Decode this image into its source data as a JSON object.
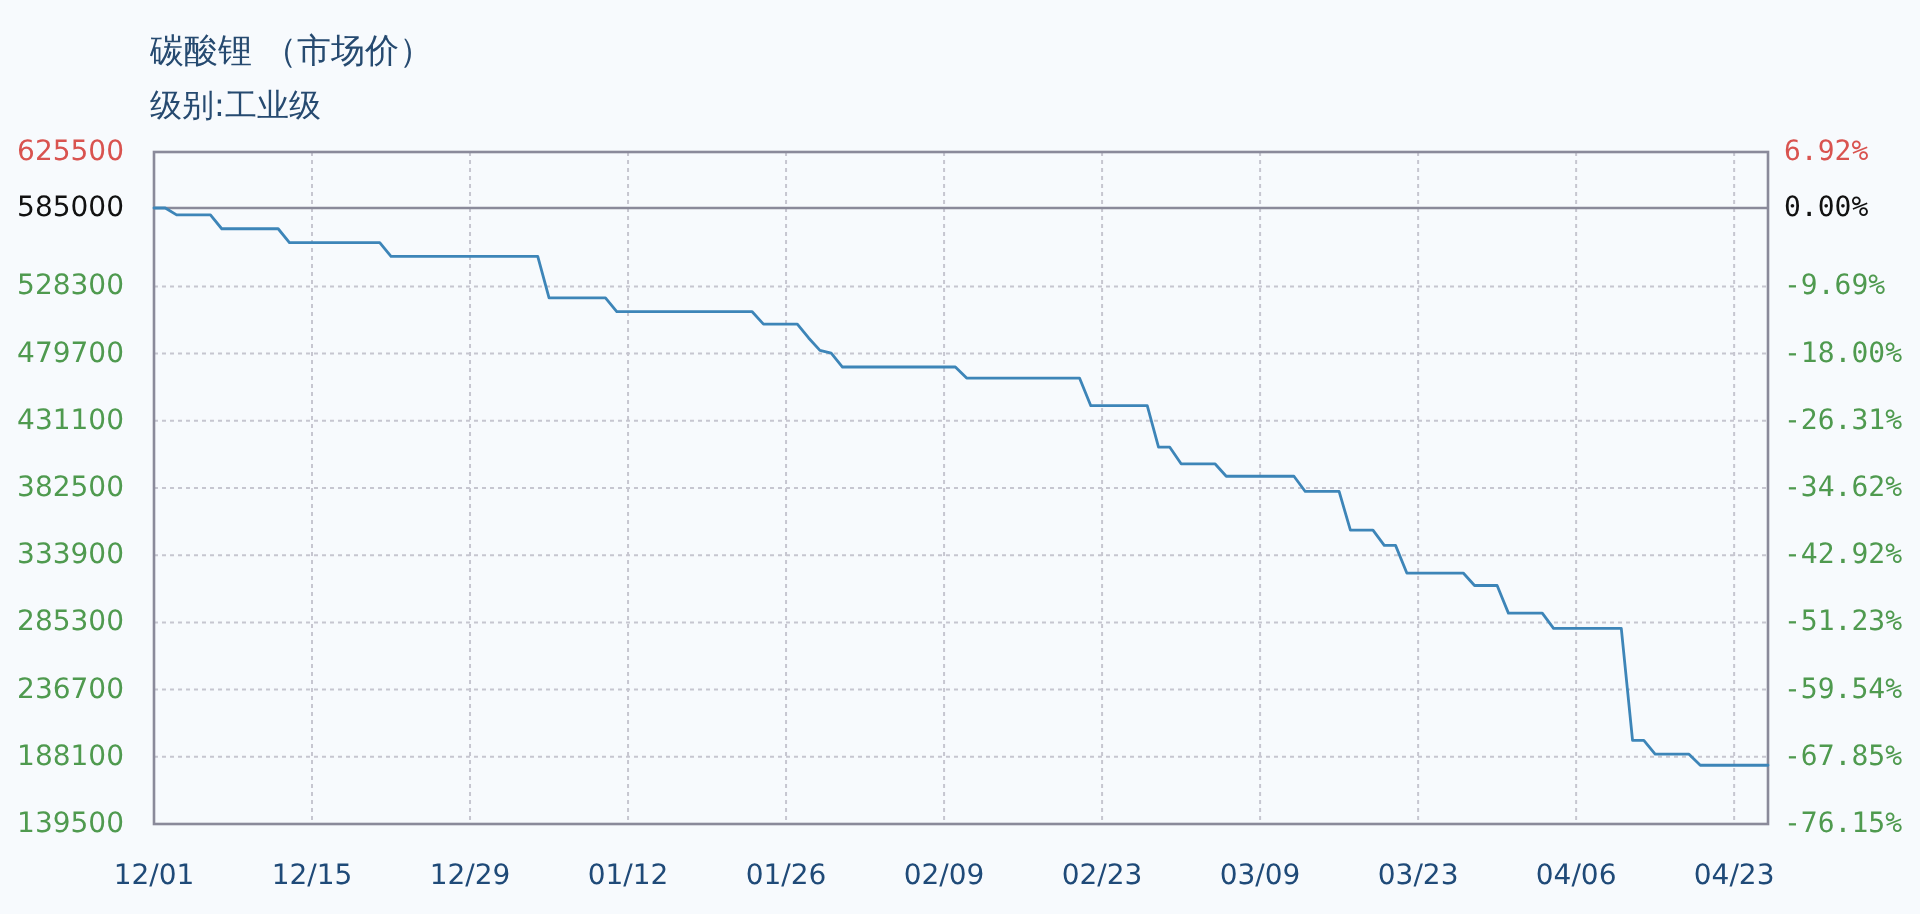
{
  "chart_data": {
    "type": "line",
    "title": "碳酸锂 （市场价）",
    "subtitle": "级别:工业级",
    "categories": [
      "12/01",
      null,
      null,
      null,
      null,
      null,
      null,
      null,
      null,
      null,
      null,
      null,
      null,
      null,
      "12/15",
      null,
      null,
      null,
      null,
      null,
      null,
      null,
      null,
      null,
      null,
      null,
      null,
      null,
      "12/29",
      null,
      null,
      null,
      null,
      null,
      null,
      null,
      null,
      null,
      null,
      null,
      null,
      null,
      "01/12",
      null,
      null,
      null,
      null,
      null,
      null,
      null,
      null,
      null,
      null,
      null,
      null,
      null,
      "01/26",
      null,
      null,
      null,
      null,
      null,
      null,
      null,
      null,
      null,
      null,
      null,
      null,
      null,
      "02/09",
      null,
      null,
      null,
      null,
      null,
      null,
      null,
      null,
      null,
      null,
      null,
      null,
      null,
      "02/23",
      null,
      null,
      null,
      null,
      null,
      null,
      null,
      null,
      null,
      null,
      null,
      null,
      null,
      "03/09",
      null,
      null,
      null,
      null,
      null,
      null,
      null,
      null,
      null,
      null,
      null,
      null,
      null,
      "03/23",
      null,
      null,
      null,
      null,
      null,
      null,
      null,
      null,
      null,
      null,
      null,
      null,
      null,
      "04/06",
      null,
      null,
      null,
      null,
      null,
      null,
      null,
      null,
      null,
      null,
      null,
      null,
      null,
      "04/23",
      null,
      null,
      null
    ],
    "series": [
      {
        "color": "#3d85b8",
        "values": [
          585000,
          585000,
          580000,
          580000,
          580000,
          580000,
          570000,
          570000,
          570000,
          570000,
          570000,
          570000,
          560000,
          560000,
          560000,
          560000,
          560000,
          560000,
          560000,
          560000,
          560000,
          550000,
          550000,
          550000,
          550000,
          550000,
          550000,
          550000,
          550000,
          550000,
          550000,
          550000,
          550000,
          550000,
          550000,
          520000,
          520000,
          520000,
          520000,
          520000,
          520000,
          510000,
          510000,
          510000,
          510000,
          510000,
          510000,
          510000,
          510000,
          510000,
          510000,
          510000,
          510000,
          510000,
          501000,
          501000,
          501000,
          501000,
          491000,
          482000,
          480000,
          470000,
          470000,
          470000,
          470000,
          470000,
          470000,
          470000,
          470000,
          470000,
          470000,
          470000,
          462000,
          462000,
          462000,
          462000,
          462000,
          462000,
          462000,
          462000,
          462000,
          462000,
          462000,
          442000,
          442000,
          442000,
          442000,
          442000,
          442000,
          412000,
          412000,
          400000,
          400000,
          400000,
          400000,
          391000,
          391000,
          391000,
          391000,
          391000,
          391000,
          391000,
          380000,
          380000,
          380000,
          380000,
          352000,
          352000,
          352000,
          341000,
          341000,
          321000,
          321000,
          321000,
          321000,
          321000,
          321000,
          312000,
          312000,
          312000,
          292000,
          292000,
          292000,
          292000,
          281000,
          281000,
          281000,
          281000,
          281000,
          281000,
          281000,
          200000,
          200000,
          190000,
          190000,
          190000,
          190000,
          182000,
          182000,
          182000,
          182000,
          182000,
          182000,
          182000
        ]
      }
    ],
    "ylim": [
      139500,
      625500
    ],
    "yticks": [
      139500,
      188100,
      236700,
      285300,
      333900,
      382500,
      431100,
      479700,
      528300,
      585000,
      625500
    ],
    "y2lim": [
      -76.15,
      6.92
    ],
    "y2ticks": [
      {
        "value": -76.15,
        "label": "-76.15%"
      },
      {
        "value": -67.85,
        "label": "-67.85%"
      },
      {
        "value": -59.54,
        "label": "-59.54%"
      },
      {
        "value": -51.23,
        "label": "-51.23%"
      },
      {
        "value": -42.92,
        "label": "-42.92%"
      },
      {
        "value": -34.62,
        "label": "-34.62%"
      },
      {
        "value": -26.31,
        "label": "-26.31%"
      },
      {
        "value": -18.0,
        "label": "-18.00%"
      },
      {
        "value": -9.69,
        "label": "-9.69%"
      },
      {
        "value": 0,
        "label": "0.00%"
      },
      {
        "value": 6.92,
        "label": "6.92%"
      }
    ],
    "ref_lines": [
      {
        "axis": "y",
        "value": 585000,
        "color": "#8a8a9a"
      }
    ],
    "grid": true,
    "line_style": "solid"
  }
}
